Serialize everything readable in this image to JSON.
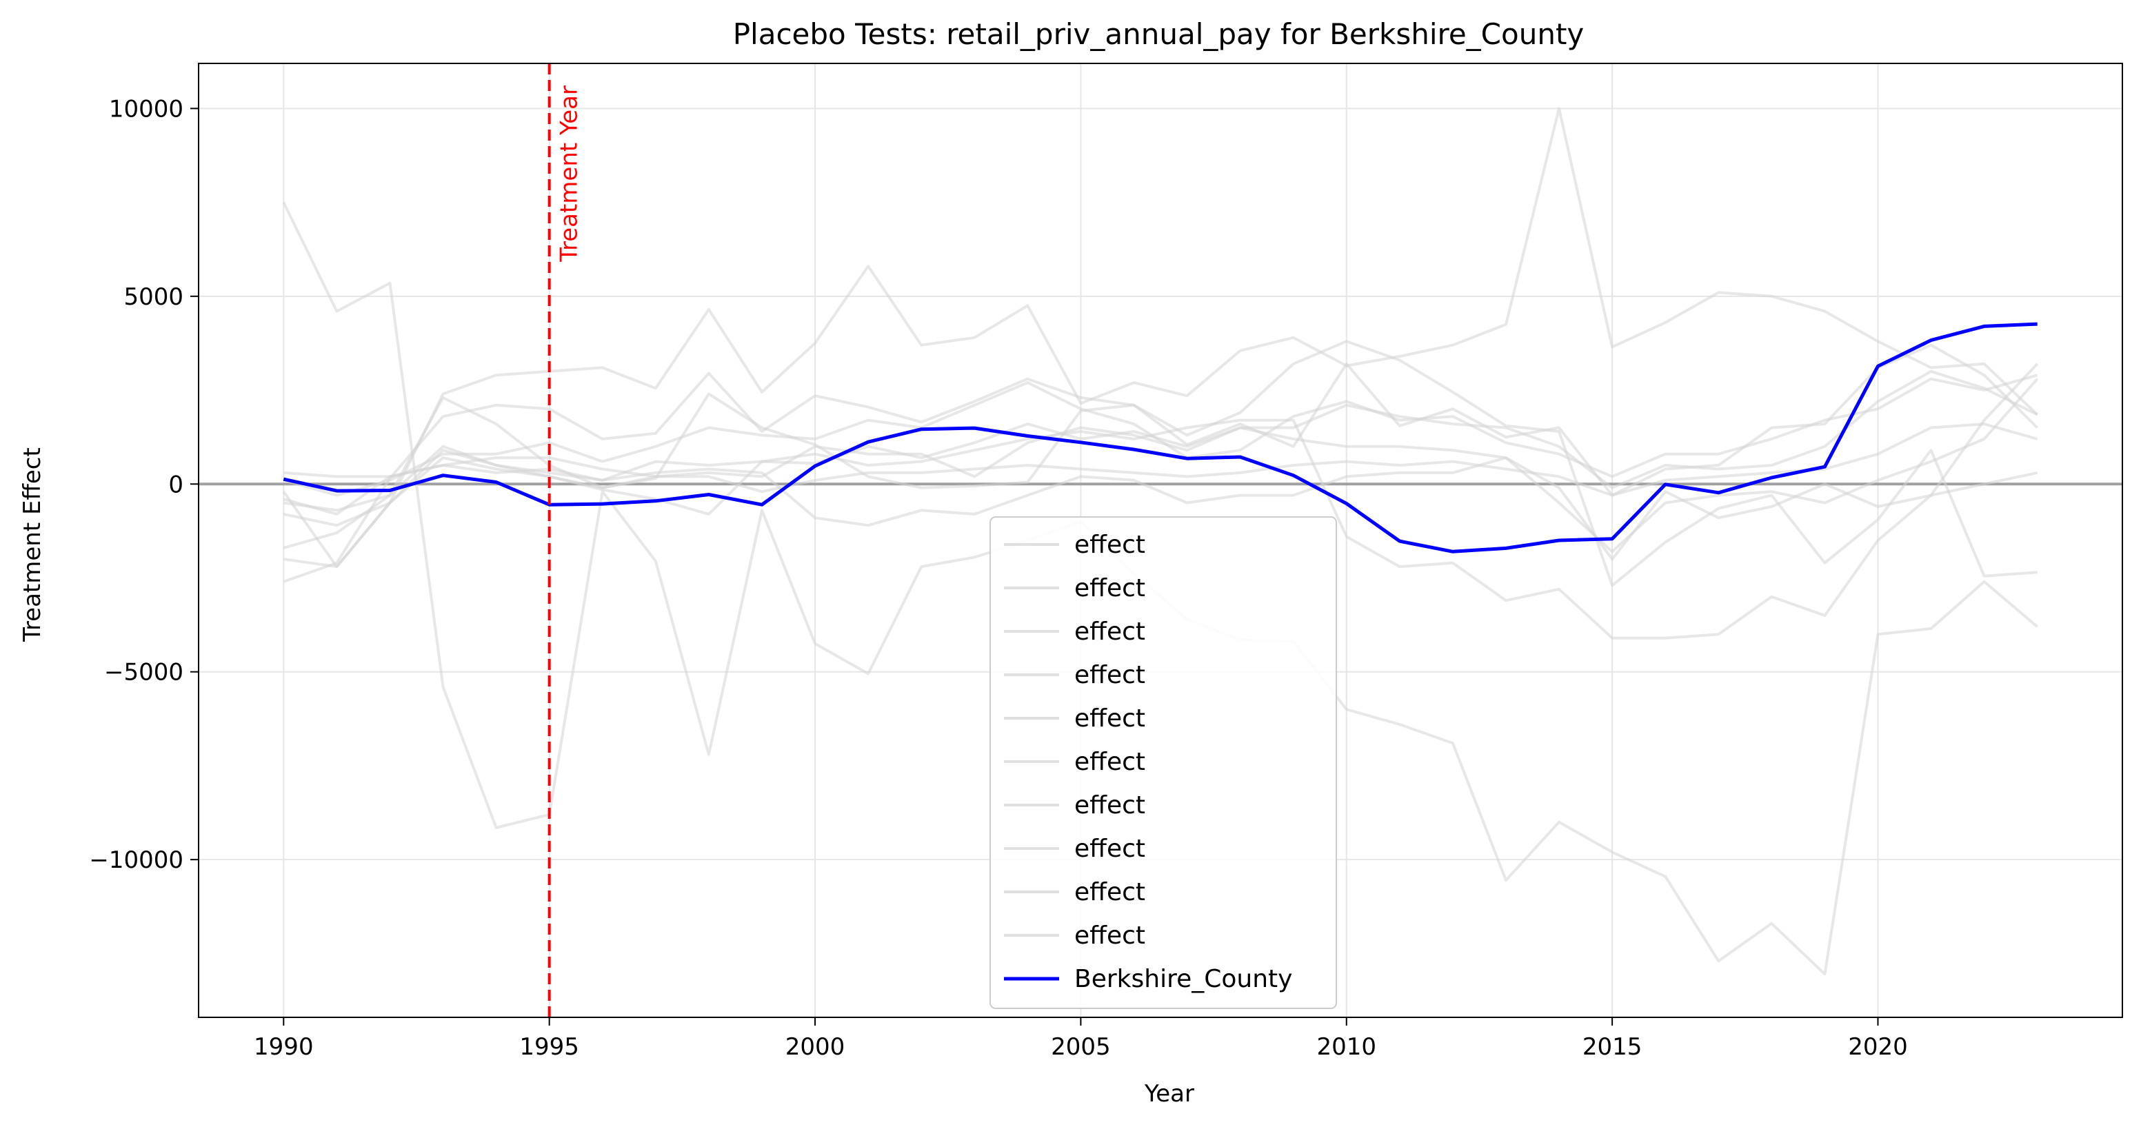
{
  "chart_data": {
    "type": "line",
    "title": "Placebo Tests: retail_priv_annual_pay for Berkshire_County",
    "xlabel": "Year",
    "ylabel": "Treatment Effect",
    "xlim": [
      1988.4,
      2024.6
    ],
    "ylim": [
      -14200,
      11200
    ],
    "xticks": [
      1990,
      1995,
      2000,
      2005,
      2010,
      2015,
      2020
    ],
    "yticks": [
      -10000,
      -5000,
      0,
      5000,
      10000
    ],
    "ytick_labels": [
      "−10000",
      "−5000",
      "0",
      "5000",
      "10000"
    ],
    "grid": true,
    "legend_position": "lower center",
    "zero_line": {
      "y": 0,
      "color": "#a0a0a0"
    },
    "annotation": {
      "x": 1995,
      "text": "Treatment Year",
      "color": "#ff0000"
    },
    "colors": {
      "placebo": "#d3d3d3",
      "treated": "#0000ff",
      "treatment_line": "#ff0000"
    },
    "x": [
      1990,
      1991,
      1992,
      1993,
      1994,
      1995,
      1996,
      1997,
      1998,
      1999,
      2000,
      2001,
      2002,
      2003,
      2004,
      2005,
      2006,
      2007,
      2008,
      2009,
      2010,
      2011,
      2012,
      2013,
      2014,
      2015,
      2016,
      2017,
      2018,
      2019,
      2020,
      2021,
      2022,
      2023
    ],
    "series": [
      {
        "name": "effect",
        "values": [
          7500,
          4600,
          5350,
          -5400,
          -9150,
          -8800,
          -200,
          -2050,
          -7200,
          -700,
          -4250,
          -5050,
          -2200,
          -1950,
          -1500,
          -1000,
          -2400,
          -3600,
          -4150,
          -4200,
          -6000,
          -6400,
          -6900,
          -10550,
          -9000,
          -9800,
          -10450,
          -12700,
          -11700,
          -13050,
          -4000,
          -3850,
          -2600,
          -3800
        ]
      },
      {
        "name": "effect",
        "values": [
          -200,
          -2200,
          -500,
          2400,
          2900,
          3000,
          3100,
          2550,
          4650,
          2450,
          3750,
          5800,
          3700,
          3900,
          4750,
          2150,
          2700,
          2350,
          3550,
          3900,
          3150,
          3400,
          3700,
          4250,
          10000,
          3650,
          4300,
          5100,
          5000,
          4600,
          3800,
          3100,
          3200,
          1850
        ]
      },
      {
        "name": "effect",
        "values": [
          -2600,
          -2100,
          150,
          1800,
          2100,
          2000,
          1200,
          1350,
          2950,
          1400,
          2350,
          2050,
          1650,
          2200,
          2800,
          2300,
          2100,
          1300,
          1900,
          3200,
          3800,
          3300,
          2450,
          1550,
          1400,
          -2700,
          -1550,
          -650,
          -300,
          -2100,
          -950,
          900,
          -2450,
          -2350
        ]
      },
      {
        "name": "effect",
        "values": [
          -500,
          -700,
          -300,
          2300,
          1600,
          500,
          -100,
          150,
          2400,
          1500,
          1050,
          200,
          -100,
          -50,
          50,
          1950,
          2100,
          1050,
          1600,
          1000,
          3200,
          1550,
          2000,
          1250,
          1500,
          -300,
          400,
          500,
          1500,
          1600,
          3100,
          3700,
          2900,
          1500
        ]
      },
      {
        "name": "effect",
        "values": [
          -1700,
          -1300,
          -300,
          1000,
          500,
          200,
          -150,
          -400,
          -800,
          600,
          550,
          1000,
          700,
          1100,
          1600,
          1200,
          1400,
          1000,
          1500,
          1500,
          2100,
          1800,
          1600,
          1500,
          1000,
          -100,
          500,
          400,
          500,
          1000,
          2200,
          3000,
          2550,
          1850
        ]
      },
      {
        "name": "effect",
        "values": [
          100,
          -300,
          100,
          800,
          800,
          1100,
          600,
          1000,
          1500,
          1300,
          1200,
          1700,
          1500,
          2100,
          2700,
          2000,
          1600,
          700,
          900,
          1800,
          2200,
          1700,
          1800,
          1100,
          800,
          200,
          800,
          800,
          1200,
          1700,
          2000,
          2800,
          2500,
          2900
        ]
      },
      {
        "name": "effect",
        "values": [
          -800,
          -1100,
          -500,
          900,
          500,
          300,
          100,
          300,
          400,
          300,
          -900,
          -1100,
          -700,
          -800,
          -300,
          200,
          100,
          -500,
          -300,
          -300,
          200,
          300,
          300,
          700,
          -500,
          -1800,
          -500,
          -300,
          -200,
          -500,
          100,
          600,
          1200,
          2800
        ]
      },
      {
        "name": "effect",
        "values": [
          300,
          200,
          200,
          500,
          700,
          700,
          400,
          200,
          200,
          -200,
          100,
          300,
          300,
          400,
          500,
          400,
          300,
          200,
          300,
          500,
          600,
          500,
          600,
          400,
          200,
          -300,
          100,
          200,
          300,
          400,
          800,
          1500,
          1600,
          1200
        ]
      },
      {
        "name": "effect",
        "values": [
          -2000,
          -2200,
          -500,
          700,
          400,
          200,
          -100,
          200,
          300,
          200,
          1000,
          800,
          800,
          200,
          1100,
          1500,
          1300,
          900,
          1500,
          1200,
          1000,
          1000,
          900,
          700,
          -100,
          -2000,
          -200,
          -900,
          -600,
          0,
          -600,
          -300,
          0,
          300
        ]
      },
      {
        "name": "effect",
        "values": [
          -400,
          -800,
          200,
          500,
          300,
          400,
          100,
          600,
          500,
          600,
          800,
          500,
          600,
          900,
          1200,
          1400,
          1200,
          1500,
          1700,
          1700,
          -1400,
          -2200,
          -2100,
          -3100,
          -2800,
          -4100,
          -4100,
          -4000,
          -3000,
          -3500,
          -1500,
          -300,
          1700,
          3200
        ]
      },
      {
        "name": "Berkshire_County",
        "values": [
          130,
          -180,
          -170,
          230,
          50,
          -550,
          -530,
          -450,
          -280,
          -550,
          480,
          1120,
          1460,
          1490,
          1280,
          1110,
          920,
          680,
          720,
          230,
          -520,
          -1520,
          -1800,
          -1710,
          -1500,
          -1460,
          -10,
          -230,
          170,
          460,
          3140,
          3830,
          4200,
          4260
        ]
      }
    ]
  }
}
